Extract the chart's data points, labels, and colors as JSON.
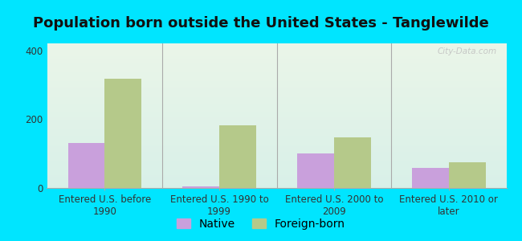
{
  "title": "Population born outside the United States - Tanglewilde",
  "categories": [
    "Entered U.S. before\n1990",
    "Entered U.S. 1990 to\n1999",
    "Entered U.S. 2000 to\n2009",
    "Entered U.S. 2010 or\nlater"
  ],
  "native_values": [
    130,
    5,
    100,
    58
  ],
  "foreign_values": [
    318,
    183,
    148,
    75
  ],
  "native_color": "#c9a0dc",
  "foreign_color": "#b5c98a",
  "background_outer": "#00e5ff",
  "background_inner_top": "#eaf5e8",
  "background_inner_bottom": "#d8f0e8",
  "ylim": [
    0,
    420
  ],
  "yticks": [
    0,
    200,
    400
  ],
  "bar_width": 0.32,
  "title_fontsize": 13,
  "legend_fontsize": 10,
  "tick_fontsize": 8.5,
  "watermark_text": "City-Data.com"
}
